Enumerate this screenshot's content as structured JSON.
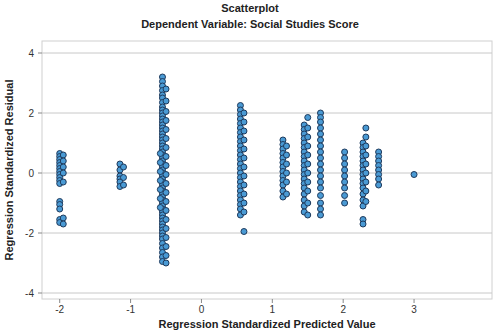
{
  "chart_data": {
    "type": "scatter",
    "title": "Scatterplot",
    "subtitle": "Dependent Variable: Social Studies Score",
    "x_label": "Regression Standardized Predicted Value",
    "y_label": "Regression Standardized Residual",
    "color": "#4a9ad4",
    "marker": "circle",
    "grid": true,
    "xlim": [
      -2.25,
      4.1
    ],
    "xticks": [
      -2,
      -1,
      0,
      1,
      2,
      3
    ],
    "ylim": [
      -4.2,
      4.4
    ],
    "yticks": [
      -4,
      -2,
      0,
      2,
      4
    ],
    "x": [
      -2,
      -2,
      -2,
      -2,
      -2,
      -2,
      -2,
      -2,
      -2,
      -2,
      -2,
      -2,
      -2,
      -2,
      -2,
      -2,
      -1.95,
      -1.95,
      -1.95,
      -1.95,
      -1.95,
      -1.95,
      -1.95,
      -1.15,
      -1.15,
      -1.15,
      -1.15,
      -1.15,
      -1.15,
      -1.1,
      -1.1,
      -1.1,
      -0.55,
      -0.55,
      -0.55,
      -0.55,
      -0.55,
      -0.55,
      -0.55,
      -0.55,
      -0.55,
      -0.55,
      -0.55,
      -0.55,
      -0.55,
      -0.55,
      -0.55,
      -0.55,
      -0.55,
      -0.55,
      -0.55,
      -0.55,
      -0.55,
      -0.55,
      -0.55,
      -0.55,
      -0.55,
      -0.55,
      -0.55,
      -0.55,
      -0.55,
      -0.55,
      -0.55,
      -0.55,
      -0.55,
      -0.55,
      -0.55,
      -0.55,
      -0.55,
      -0.55,
      -0.55,
      -0.55,
      -0.55,
      -0.55,
      -0.55,
      -0.55,
      -0.55,
      -0.55,
      -0.55,
      -0.55,
      -0.55,
      -0.55,
      -0.55,
      -0.55,
      -0.55,
      -0.55,
      -0.55,
      -0.55,
      -0.55,
      -0.5,
      -0.5,
      -0.5,
      -0.5,
      -0.5,
      -0.5,
      -0.5,
      -0.5,
      -0.5,
      -0.5,
      -0.5,
      -0.5,
      -0.5,
      -0.5,
      -0.5,
      -0.5,
      -0.5,
      -0.5,
      -0.5,
      -0.5,
      -0.58,
      -0.58,
      -0.58,
      -0.58,
      -0.58,
      -0.58,
      -0.58,
      0.55,
      0.55,
      0.55,
      0.55,
      0.55,
      0.55,
      0.55,
      0.55,
      0.55,
      0.55,
      0.55,
      0.55,
      0.55,
      0.55,
      0.55,
      0.55,
      0.55,
      0.55,
      0.55,
      0.55,
      0.55,
      0.55,
      0.55,
      0.55,
      0.55,
      0.6,
      0.6,
      0.6,
      0.6,
      0.6,
      0.6,
      0.6,
      0.6,
      0.6,
      0.6,
      0.6,
      0.6,
      0.6,
      1.15,
      1.15,
      1.15,
      1.15,
      1.15,
      1.15,
      1.15,
      1.15,
      1.15,
      1.15,
      1.15,
      1.15,
      1.15,
      1.2,
      1.2,
      1.2,
      1.2,
      1.2,
      1.2,
      1.45,
      1.45,
      1.45,
      1.45,
      1.45,
      1.45,
      1.45,
      1.45,
      1.45,
      1.45,
      1.45,
      1.45,
      1.45,
      1.45,
      1.45,
      1.45,
      1.45,
      1.45,
      1.45,
      1.5,
      1.5,
      1.5,
      1.5,
      1.5,
      1.5,
      1.5,
      1.5,
      1.5,
      1.5,
      1.5,
      1.68,
      1.68,
      1.68,
      1.68,
      1.68,
      1.68,
      1.68,
      1.68,
      1.68,
      1.68,
      1.68,
      1.68,
      1.68,
      1.68,
      1.68,
      1.68,
      1.68,
      1.68,
      2.02,
      2.02,
      2.02,
      2.02,
      2.02,
      2.02,
      2.02,
      2.02,
      2.02,
      2.28,
      2.28,
      2.28,
      2.28,
      2.28,
      2.28,
      2.28,
      2.28,
      2.28,
      2.28,
      2.28,
      2.28,
      2.28,
      2.28,
      2.28,
      2.28,
      2.32,
      2.32,
      2.32,
      2.32,
      2.32,
      2.32,
      2.32,
      2.32,
      2.32,
      2.5,
      2.5,
      2.5,
      2.5,
      2.5,
      2.5,
      2.5,
      2.5,
      3
    ],
    "values": [
      0.65,
      0.55,
      0.45,
      0.35,
      0.25,
      0.15,
      0.05,
      -0.05,
      -0.15,
      -0.25,
      -0.35,
      -0.95,
      -1.05,
      -1.2,
      -1.55,
      -1.65,
      0.6,
      0.4,
      0.2,
      0,
      -0.3,
      -1.5,
      -1.7,
      0.3,
      0.1,
      -0.1,
      -0.2,
      -0.3,
      -0.45,
      0.2,
      -0.15,
      -0.4,
      3.2,
      3.05,
      2.9,
      2.75,
      2.6,
      2.5,
      2.35,
      2.2,
      2.1,
      2,
      1.9,
      1.8,
      1.7,
      1.6,
      1.5,
      1.4,
      1.3,
      1.2,
      1.1,
      1,
      0.9,
      0.8,
      0.7,
      0.6,
      0.5,
      0.4,
      0.3,
      0.2,
      0.1,
      0,
      -0.1,
      -0.2,
      -0.3,
      -0.4,
      -0.5,
      -0.6,
      -0.7,
      -0.8,
      -0.9,
      -1,
      -1.1,
      -1.2,
      -1.3,
      -1.4,
      -1.5,
      -1.6,
      -1.7,
      -1.8,
      -1.9,
      -2,
      -2.1,
      -2.2,
      -2.35,
      -2.5,
      -2.65,
      -2.8,
      -2.95,
      2.8,
      2.4,
      2.05,
      1.75,
      1.45,
      1.15,
      0.85,
      0.55,
      0.25,
      -0.05,
      -0.35,
      -0.65,
      -0.95,
      -1.25,
      -1.55,
      -1.85,
      -2.15,
      -2.45,
      -2.75,
      -3,
      0.65,
      0.35,
      0.05,
      -0.25,
      -0.55,
      -0.85,
      -1.15,
      2.25,
      2.1,
      1.95,
      1.8,
      1.65,
      1.5,
      1.35,
      1.2,
      1.05,
      0.9,
      0.75,
      0.6,
      0.45,
      0.3,
      0.15,
      0,
      -0.15,
      -0.3,
      -0.45,
      -0.6,
      -0.75,
      -0.9,
      -1.05,
      -1.2,
      -1.4,
      2,
      1.7,
      1.4,
      1.1,
      0.8,
      0.5,
      0.2,
      -0.1,
      -0.4,
      -0.7,
      -1,
      -1.3,
      -1.95,
      1.1,
      0.95,
      0.8,
      0.65,
      0.5,
      0.35,
      0.2,
      0.05,
      -0.1,
      -0.25,
      -0.4,
      -0.6,
      -0.8,
      0.9,
      0.6,
      0.3,
      0,
      -0.3,
      -0.7,
      1.6,
      1.45,
      1.3,
      1.15,
      1,
      0.85,
      0.7,
      0.55,
      0.4,
      0.25,
      0.1,
      -0.05,
      -0.2,
      -0.35,
      -0.5,
      -0.7,
      -0.9,
      -1.1,
      -1.3,
      1.85,
      1.5,
      1.2,
      0.9,
      0.6,
      0.3,
      0,
      -0.3,
      -0.6,
      -1,
      -1.4,
      2,
      1.85,
      1.7,
      1.5,
      1.3,
      1.1,
      0.9,
      0.7,
      0.5,
      0.3,
      0.1,
      -0.1,
      -0.3,
      -0.5,
      -0.75,
      -1,
      -1.2,
      -1.4,
      0.7,
      0.5,
      0.3,
      0.1,
      -0.1,
      -0.3,
      -0.5,
      -0.75,
      -1,
      1,
      0.85,
      0.7,
      0.55,
      0.4,
      0.25,
      0.1,
      -0.05,
      -0.2,
      -0.35,
      -0.5,
      -0.7,
      -0.9,
      -1.1,
      -1.55,
      -1.7,
      1.5,
      1.2,
      0.9,
      0.6,
      0.3,
      0,
      -0.3,
      -0.6,
      -0.95,
      0.7,
      0.55,
      0.4,
      0.25,
      0.1,
      -0.05,
      -0.2,
      -0.4,
      -0.05
    ]
  }
}
